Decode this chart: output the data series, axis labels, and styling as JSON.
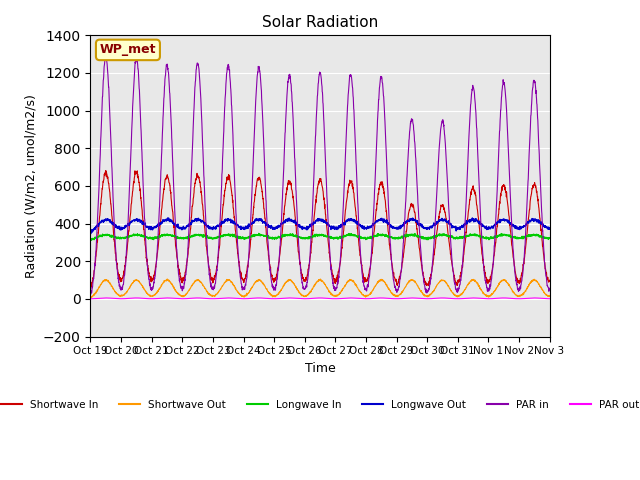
{
  "title": "Solar Radiation",
  "xlabel": "Time",
  "ylabel": "Radiation (W/m2, umol/m2/s)",
  "ylim": [
    -200,
    1400
  ],
  "yticks": [
    -200,
    0,
    200,
    400,
    600,
    800,
    1000,
    1200,
    1400
  ],
  "xtick_labels": [
    "Oct 19",
    "Oct 20",
    "Oct 21",
    "Oct 22",
    "Oct 23",
    "Oct 24",
    "Oct 25",
    "Oct 26",
    "Oct 27",
    "Oct 28",
    "Oct 29",
    "Oct 30",
    "Oct 31",
    "Nov 1",
    "Nov 2",
    "Nov 3"
  ],
  "legend_entries": [
    "Shortwave In",
    "Shortwave Out",
    "Longwave In",
    "Longwave Out",
    "PAR in",
    "PAR out"
  ],
  "colors": {
    "shortwave_in": "#cc0000",
    "shortwave_out": "#ff9900",
    "longwave_in": "#00cc00",
    "longwave_out": "#0000cc",
    "par_in": "#8800aa",
    "par_out": "#ff00ff"
  },
  "annotation_text": "WP_met",
  "annotation_bgcolor": "#ffffcc",
  "annotation_edgecolor": "#cc9900",
  "annotation_textcolor": "#880000",
  "n_days": 15,
  "points_per_day": 144,
  "shortwave_in_day_peak": 670,
  "shortwave_out_day_peak": 100,
  "longwave_in_base": 305,
  "longwave_in_day_peak": 340,
  "longwave_out_base": 330,
  "longwave_out_day_peak": 420,
  "par_in_day_peak": 1280,
  "par_out_day_peak": 0,
  "background_color": "#e8e8e8"
}
